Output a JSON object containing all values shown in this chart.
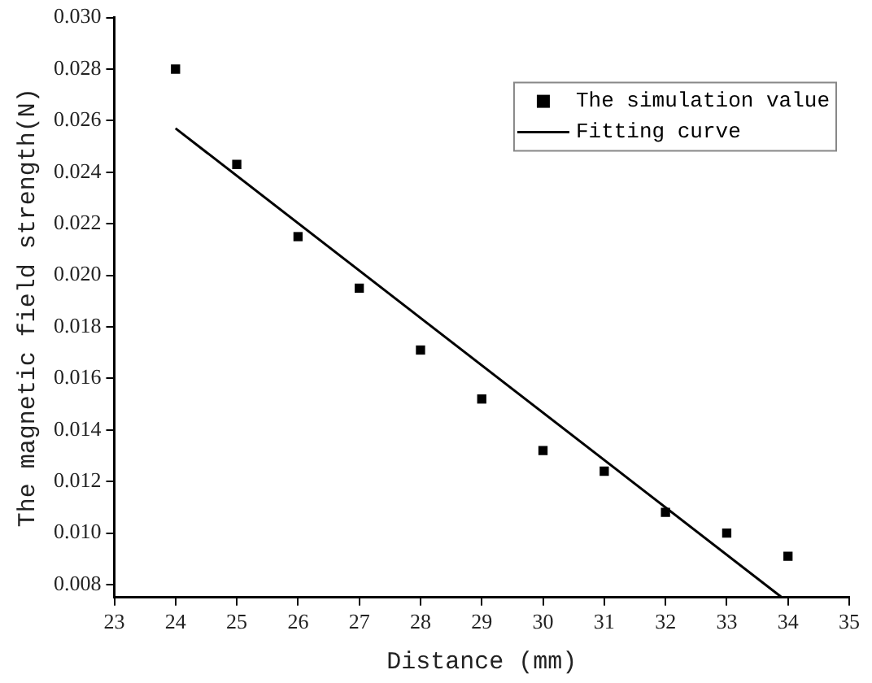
{
  "chart_data": {
    "type": "scatter",
    "xlabel": "Distance (mm)",
    "ylabel": "The magnetic field strength(N)",
    "xlim": [
      23,
      35
    ],
    "xticks": [
      23,
      24,
      25,
      26,
      27,
      28,
      29,
      30,
      31,
      32,
      33,
      34,
      35
    ],
    "ylim": [
      0.0075,
      0.03
    ],
    "yticks": [
      {
        "value": 0.008,
        "label": "0.008"
      },
      {
        "value": 0.01,
        "label": "0.010"
      },
      {
        "value": 0.012,
        "label": "0.012"
      },
      {
        "value": 0.014,
        "label": "0.014"
      },
      {
        "value": 0.016,
        "label": "0.016"
      },
      {
        "value": 0.018,
        "label": "0.018"
      },
      {
        "value": 0.02,
        "label": "0.020"
      },
      {
        "value": 0.022,
        "label": "0.022"
      },
      {
        "value": 0.024,
        "label": "0.024"
      },
      {
        "value": 0.026,
        "label": "0.026"
      },
      {
        "value": 0.028,
        "label": "0.028"
      },
      {
        "value": 0.03,
        "label": "0.030"
      }
    ],
    "grid": false,
    "legend": "top right",
    "series": [
      {
        "name": "The simulation value",
        "type": "scatter",
        "marker": "square",
        "color": "#000000",
        "x": [
          24,
          25,
          26,
          27,
          28,
          29,
          30,
          31,
          32,
          33,
          34
        ],
        "values": [
          0.028,
          0.0243,
          0.0215,
          0.0195,
          0.0171,
          0.0152,
          0.0132,
          0.0124,
          0.0108,
          0.01,
          0.0091
        ]
      },
      {
        "name": "Fitting curve",
        "type": "line",
        "marker": "none",
        "color": "#000000",
        "x": [
          24,
          33.9
        ],
        "values": [
          0.0257,
          0.0075
        ]
      }
    ]
  }
}
